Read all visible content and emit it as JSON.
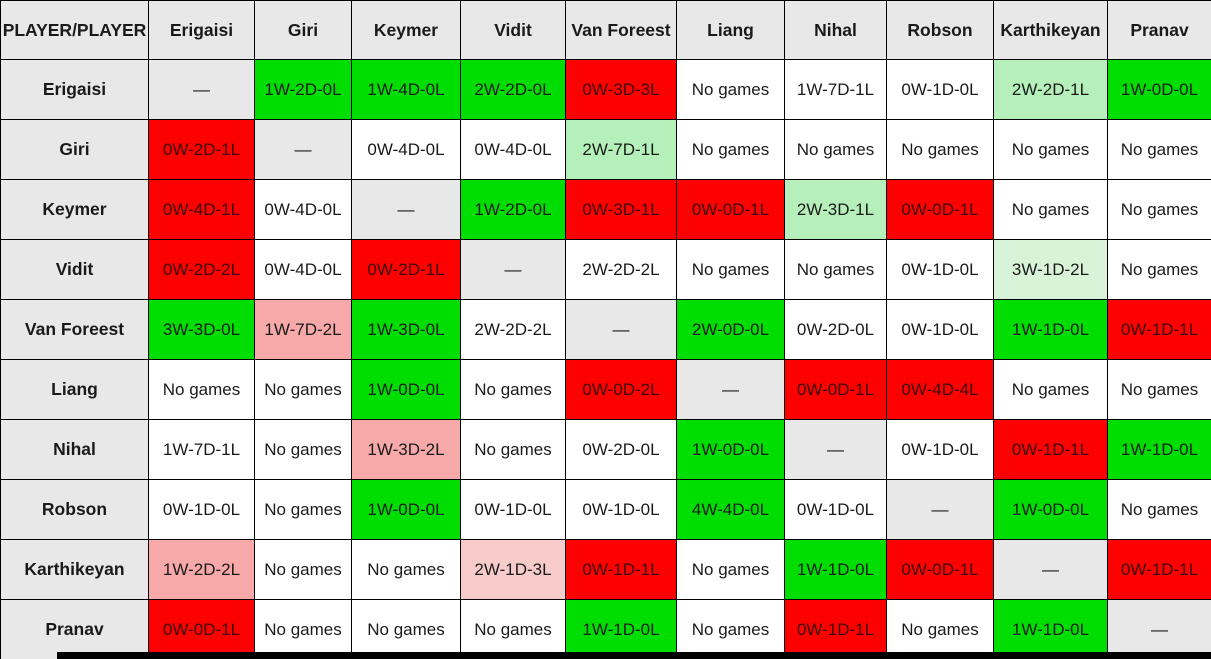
{
  "table": {
    "corner_label": "PLAYER/PLAYER",
    "no_games_label": "No games",
    "diagonal_label": "—",
    "columns": [
      "Erigaisi",
      "Giri",
      "Keymer",
      "Vidit",
      "Van Foreest",
      "Liang",
      "Nihal",
      "Robson",
      "Karthikeyan",
      "Pranav"
    ],
    "rows": [
      {
        "player": "Erigaisi",
        "cells": [
          {
            "text": "—",
            "state": "diagonal"
          },
          {
            "text": "1W-2D-0L",
            "state": "win"
          },
          {
            "text": "1W-4D-0L",
            "state": "win"
          },
          {
            "text": "2W-2D-0L",
            "state": "win"
          },
          {
            "text": "0W-3D-3L",
            "state": "loss"
          },
          {
            "text": "No games",
            "state": "none"
          },
          {
            "text": "1W-7D-1L",
            "state": "even"
          },
          {
            "text": "0W-1D-0L",
            "state": "even"
          },
          {
            "text": "2W-2D-1L",
            "state": "win_light"
          },
          {
            "text": "1W-0D-0L",
            "state": "win"
          }
        ]
      },
      {
        "player": "Giri",
        "cells": [
          {
            "text": "0W-2D-1L",
            "state": "loss"
          },
          {
            "text": "—",
            "state": "diagonal"
          },
          {
            "text": "0W-4D-0L",
            "state": "even"
          },
          {
            "text": "0W-4D-0L",
            "state": "even"
          },
          {
            "text": "2W-7D-1L",
            "state": "win_light"
          },
          {
            "text": "No games",
            "state": "none"
          },
          {
            "text": "No games",
            "state": "none"
          },
          {
            "text": "No games",
            "state": "none"
          },
          {
            "text": "No games",
            "state": "none"
          },
          {
            "text": "No games",
            "state": "none"
          }
        ]
      },
      {
        "player": "Keymer",
        "cells": [
          {
            "text": "0W-4D-1L",
            "state": "loss"
          },
          {
            "text": "0W-4D-0L",
            "state": "even"
          },
          {
            "text": "—",
            "state": "diagonal"
          },
          {
            "text": "1W-2D-0L",
            "state": "win"
          },
          {
            "text": "0W-3D-1L",
            "state": "loss"
          },
          {
            "text": "0W-0D-1L",
            "state": "loss"
          },
          {
            "text": "2W-3D-1L",
            "state": "win_light"
          },
          {
            "text": "0W-0D-1L",
            "state": "loss"
          },
          {
            "text": "No games",
            "state": "none"
          },
          {
            "text": "No games",
            "state": "none"
          }
        ]
      },
      {
        "player": "Vidit",
        "cells": [
          {
            "text": "0W-2D-2L",
            "state": "loss"
          },
          {
            "text": "0W-4D-0L",
            "state": "even"
          },
          {
            "text": "0W-2D-1L",
            "state": "loss"
          },
          {
            "text": "—",
            "state": "diagonal"
          },
          {
            "text": "2W-2D-2L",
            "state": "even"
          },
          {
            "text": "No games",
            "state": "none"
          },
          {
            "text": "No games",
            "state": "none"
          },
          {
            "text": "0W-1D-0L",
            "state": "even"
          },
          {
            "text": "3W-1D-2L",
            "state": "win_lighter"
          },
          {
            "text": "No games",
            "state": "none"
          }
        ]
      },
      {
        "player": "Van Foreest",
        "cells": [
          {
            "text": "3W-3D-0L",
            "state": "win"
          },
          {
            "text": "1W-7D-2L",
            "state": "loss_light"
          },
          {
            "text": "1W-3D-0L",
            "state": "win"
          },
          {
            "text": "2W-2D-2L",
            "state": "even"
          },
          {
            "text": "—",
            "state": "diagonal"
          },
          {
            "text": "2W-0D-0L",
            "state": "win"
          },
          {
            "text": "0W-2D-0L",
            "state": "even"
          },
          {
            "text": "0W-1D-0L",
            "state": "even"
          },
          {
            "text": "1W-1D-0L",
            "state": "win"
          },
          {
            "text": "0W-1D-1L",
            "state": "loss"
          }
        ]
      },
      {
        "player": "Liang",
        "cells": [
          {
            "text": "No games",
            "state": "none"
          },
          {
            "text": "No games",
            "state": "none"
          },
          {
            "text": "1W-0D-0L",
            "state": "win"
          },
          {
            "text": "No games",
            "state": "none"
          },
          {
            "text": "0W-0D-2L",
            "state": "loss"
          },
          {
            "text": "—",
            "state": "diagonal"
          },
          {
            "text": "0W-0D-1L",
            "state": "loss"
          },
          {
            "text": "0W-4D-4L",
            "state": "loss"
          },
          {
            "text": "No games",
            "state": "none"
          },
          {
            "text": "No games",
            "state": "none"
          }
        ]
      },
      {
        "player": "Nihal",
        "cells": [
          {
            "text": "1W-7D-1L",
            "state": "even"
          },
          {
            "text": "No games",
            "state": "none"
          },
          {
            "text": "1W-3D-2L",
            "state": "loss_light"
          },
          {
            "text": "No games",
            "state": "none"
          },
          {
            "text": "0W-2D-0L",
            "state": "even"
          },
          {
            "text": "1W-0D-0L",
            "state": "win"
          },
          {
            "text": "—",
            "state": "diagonal"
          },
          {
            "text": "0W-1D-0L",
            "state": "even"
          },
          {
            "text": "0W-1D-1L",
            "state": "loss"
          },
          {
            "text": "1W-1D-0L",
            "state": "win"
          }
        ]
      },
      {
        "player": "Robson",
        "cells": [
          {
            "text": "0W-1D-0L",
            "state": "even"
          },
          {
            "text": "No games",
            "state": "none"
          },
          {
            "text": "1W-0D-0L",
            "state": "win"
          },
          {
            "text": "0W-1D-0L",
            "state": "even"
          },
          {
            "text": "0W-1D-0L",
            "state": "even"
          },
          {
            "text": "4W-4D-0L",
            "state": "win"
          },
          {
            "text": "0W-1D-0L",
            "state": "even"
          },
          {
            "text": "—",
            "state": "diagonal"
          },
          {
            "text": "1W-0D-0L",
            "state": "win"
          },
          {
            "text": "No games",
            "state": "none"
          }
        ]
      },
      {
        "player": "Karthikeyan",
        "cells": [
          {
            "text": "1W-2D-2L",
            "state": "loss_light"
          },
          {
            "text": "No games",
            "state": "none"
          },
          {
            "text": "No games",
            "state": "none"
          },
          {
            "text": "2W-1D-3L",
            "state": "loss_lighter"
          },
          {
            "text": "0W-1D-1L",
            "state": "loss"
          },
          {
            "text": "No games",
            "state": "none"
          },
          {
            "text": "1W-1D-0L",
            "state": "win"
          },
          {
            "text": "0W-0D-1L",
            "state": "loss"
          },
          {
            "text": "—",
            "state": "diagonal"
          },
          {
            "text": "0W-1D-1L",
            "state": "loss"
          }
        ]
      },
      {
        "player": "Pranav",
        "cells": [
          {
            "text": "0W-0D-1L",
            "state": "loss"
          },
          {
            "text": "No games",
            "state": "none"
          },
          {
            "text": "No games",
            "state": "none"
          },
          {
            "text": "No games",
            "state": "none"
          },
          {
            "text": "1W-1D-0L",
            "state": "win"
          },
          {
            "text": "No games",
            "state": "none"
          },
          {
            "text": "0W-1D-1L",
            "state": "loss"
          },
          {
            "text": "No games",
            "state": "none"
          },
          {
            "text": "1W-1D-0L",
            "state": "win"
          },
          {
            "text": "—",
            "state": "diagonal"
          }
        ]
      }
    ]
  },
  "colors": {
    "win": "#00dd00",
    "win_light": "#b5f0bb",
    "win_lighter": "#d8f3d8",
    "loss": "#fd0000",
    "loss_light": "#f7a8a8",
    "loss_lighter": "#f8cbcb",
    "even": "#ffffff",
    "none": "#ffffff",
    "diagonal": "#e8e8e8",
    "header_bg": "#e8e8e8",
    "border": "#000000"
  }
}
